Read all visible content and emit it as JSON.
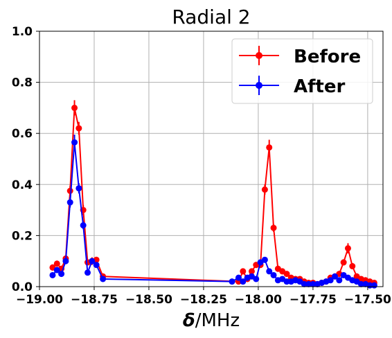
{
  "chart_data": {
    "type": "line",
    "title": "Radial 2",
    "xlabel_symbol": "δ",
    "xlabel_unit": "/MHz",
    "xlim": [
      -19.0,
      -17.43
    ],
    "ylim": [
      0,
      1.0
    ],
    "xticks": [
      -19.0,
      -18.75,
      -18.5,
      -18.25,
      -18.0,
      -17.75,
      -17.5
    ],
    "xtick_labels": [
      "−19.00",
      "−18.75",
      "−18.50",
      "−18.25",
      "−18.00",
      "−17.75",
      "−17.50"
    ],
    "yticks": [
      0.0,
      0.2,
      0.4,
      0.6,
      0.8,
      1.0
    ],
    "ytick_labels": [
      "0.0",
      "0.2",
      "0.4",
      "0.6",
      "0.8",
      "1.0"
    ],
    "grid": true,
    "legend_position": "top-right",
    "series": [
      {
        "name": "Before",
        "color": "#ff0000",
        "x": [
          -18.94,
          -18.92,
          -18.9,
          -18.88,
          -18.86,
          -18.84,
          -18.82,
          -18.8,
          -18.78,
          -18.76,
          -18.74,
          -18.71,
          -18.09,
          -18.07,
          -18.05,
          -18.03,
          -18.01,
          -17.99,
          -17.97,
          -17.95,
          -17.93,
          -17.91,
          -17.89,
          -17.87,
          -17.85,
          -17.83,
          -17.81,
          -17.79,
          -17.77,
          -17.75,
          -17.73,
          -17.71,
          -17.69,
          -17.67,
          -17.65,
          -17.63,
          -17.61,
          -17.59,
          -17.57,
          -17.55,
          -17.53,
          -17.51,
          -17.49,
          -17.47
        ],
        "y": [
          0.075,
          0.09,
          0.07,
          0.11,
          0.375,
          0.7,
          0.62,
          0.3,
          0.095,
          0.1,
          0.105,
          0.04,
          0.02,
          0.06,
          0.03,
          0.06,
          0.085,
          0.085,
          0.38,
          0.545,
          0.23,
          0.07,
          0.06,
          0.05,
          0.035,
          0.03,
          0.03,
          0.02,
          0.015,
          0.015,
          0.01,
          0.015,
          0.02,
          0.035,
          0.04,
          0.05,
          0.095,
          0.15,
          0.08,
          0.04,
          0.03,
          0.025,
          0.02,
          0.015
        ],
        "yerr": [
          0.012,
          0.012,
          0.012,
          0.012,
          0.02,
          0.03,
          0.025,
          0.02,
          0.012,
          0.015,
          0.012,
          0.01,
          0.008,
          0.012,
          0.01,
          0.012,
          0.012,
          0.012,
          0.02,
          0.03,
          0.015,
          0.012,
          0.012,
          0.01,
          0.01,
          0.01,
          0.01,
          0.008,
          0.008,
          0.008,
          0.008,
          0.008,
          0.008,
          0.01,
          0.01,
          0.01,
          0.012,
          0.02,
          0.012,
          0.01,
          0.01,
          0.008,
          0.008,
          0.008
        ]
      },
      {
        "name": "After",
        "color": "#0000ff",
        "x": [
          -18.94,
          -18.92,
          -18.9,
          -18.88,
          -18.86,
          -18.84,
          -18.82,
          -18.8,
          -18.78,
          -18.76,
          -18.74,
          -18.71,
          -18.12,
          -18.09,
          -18.07,
          -18.05,
          -18.03,
          -18.01,
          -17.99,
          -17.97,
          -17.95,
          -17.93,
          -17.91,
          -17.89,
          -17.87,
          -17.85,
          -17.83,
          -17.81,
          -17.79,
          -17.77,
          -17.75,
          -17.73,
          -17.71,
          -17.69,
          -17.67,
          -17.65,
          -17.63,
          -17.61,
          -17.59,
          -17.57,
          -17.55,
          -17.53,
          -17.51,
          -17.49,
          -17.47
        ],
        "y": [
          0.045,
          0.065,
          0.05,
          0.1,
          0.33,
          0.565,
          0.385,
          0.24,
          0.055,
          0.1,
          0.085,
          0.03,
          0.02,
          0.035,
          0.02,
          0.035,
          0.04,
          0.03,
          0.095,
          0.105,
          0.06,
          0.045,
          0.025,
          0.03,
          0.02,
          0.02,
          0.025,
          0.02,
          0.01,
          0.01,
          0.01,
          0.01,
          0.015,
          0.02,
          0.025,
          0.04,
          0.025,
          0.045,
          0.035,
          0.025,
          0.02,
          0.01,
          0.01,
          0.005,
          0.005
        ],
        "yerr": [
          0.01,
          0.01,
          0.01,
          0.012,
          0.02,
          0.03,
          0.02,
          0.015,
          0.01,
          0.012,
          0.01,
          0.008,
          0.008,
          0.008,
          0.008,
          0.008,
          0.008,
          0.008,
          0.01,
          0.01,
          0.008,
          0.008,
          0.008,
          0.008,
          0.008,
          0.008,
          0.008,
          0.008,
          0.006,
          0.006,
          0.006,
          0.006,
          0.006,
          0.006,
          0.008,
          0.008,
          0.008,
          0.008,
          0.008,
          0.008,
          0.006,
          0.006,
          0.006,
          0.006,
          0.006
        ]
      }
    ]
  }
}
